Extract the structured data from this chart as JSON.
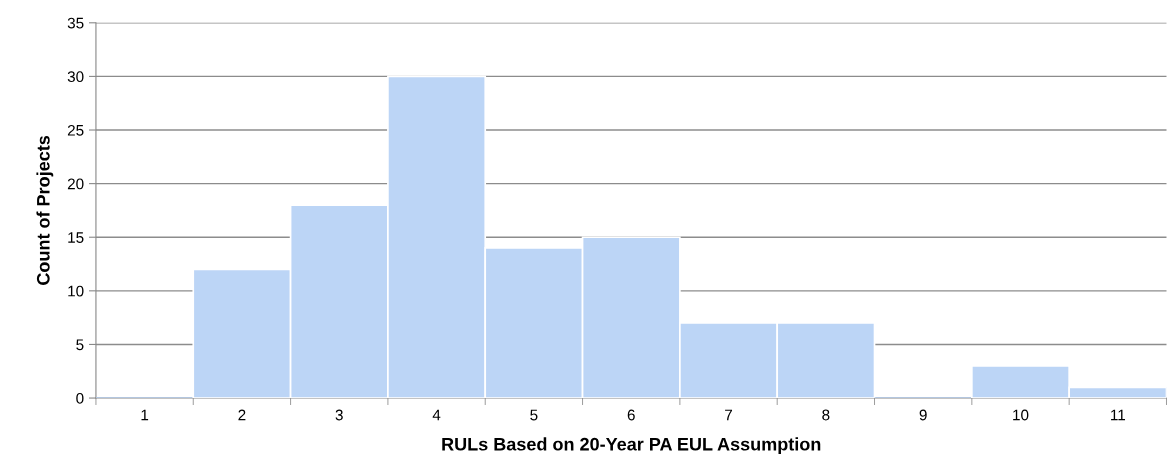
{
  "chart_data": {
    "type": "bar",
    "xlabel": "RULs Based on 20-Year PA EUL Assumption",
    "ylabel": "Count of Projects",
    "categories": [
      "1",
      "2",
      "3",
      "4",
      "5",
      "6",
      "7",
      "8",
      "9",
      "10",
      "11"
    ],
    "values": [
      0,
      12,
      18,
      30,
      14,
      15,
      7,
      7,
      0,
      3,
      1
    ],
    "color": "#bcd5f6",
    "ylim": [
      0,
      35
    ],
    "yticks": [
      0,
      5,
      10,
      15,
      20,
      25,
      30,
      35
    ],
    "grid": "y"
  }
}
